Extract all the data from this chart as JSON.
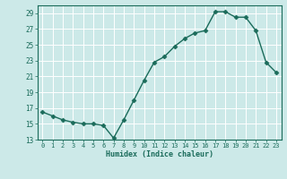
{
  "x": [
    0,
    1,
    2,
    3,
    4,
    5,
    6,
    7,
    8,
    9,
    10,
    11,
    12,
    13,
    14,
    15,
    16,
    17,
    18,
    19,
    20,
    21,
    22,
    23
  ],
  "y": [
    16.5,
    16.0,
    15.5,
    15.2,
    15.0,
    15.0,
    14.8,
    13.2,
    15.5,
    18.0,
    20.5,
    22.8,
    23.5,
    24.8,
    25.8,
    26.5,
    26.8,
    29.2,
    29.2,
    28.5,
    28.5,
    26.8,
    22.8,
    21.5
  ],
  "xlim": [
    -0.5,
    23.5
  ],
  "ylim": [
    13,
    30
  ],
  "yticks": [
    13,
    15,
    17,
    19,
    21,
    23,
    25,
    27,
    29
  ],
  "xticks": [
    0,
    1,
    2,
    3,
    4,
    5,
    6,
    7,
    8,
    9,
    10,
    11,
    12,
    13,
    14,
    15,
    16,
    17,
    18,
    19,
    20,
    21,
    22,
    23
  ],
  "xlabel": "Humidex (Indice chaleur)",
  "line_color": "#1a6b5a",
  "marker": "D",
  "marker_size": 2.5,
  "bg_color": "#cce9e8",
  "grid_color": "#ffffff",
  "tick_color": "#1a6b5a",
  "label_color": "#1a6b5a",
  "font_family": "monospace"
}
